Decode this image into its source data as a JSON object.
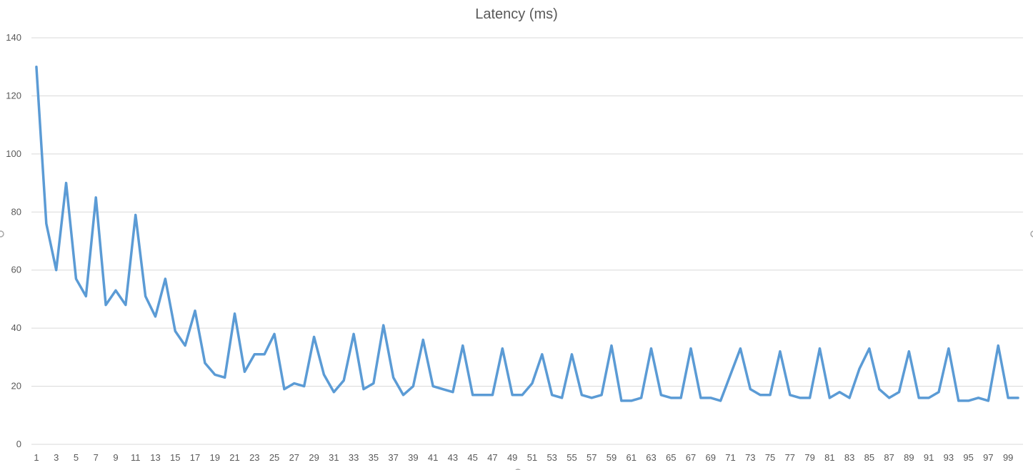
{
  "chart_data": {
    "type": "line",
    "title": "Latency (ms)",
    "xlabel": "",
    "ylabel": "",
    "ylim": [
      0,
      140
    ],
    "y_ticks": [
      0,
      20,
      40,
      60,
      80,
      100,
      120,
      140
    ],
    "x_tick_step": 2,
    "grid": true,
    "legend": "none",
    "series_color": "#5b9bd5",
    "x": [
      1,
      2,
      3,
      4,
      5,
      6,
      7,
      8,
      9,
      10,
      11,
      12,
      13,
      14,
      15,
      16,
      17,
      18,
      19,
      20,
      21,
      22,
      23,
      24,
      25,
      26,
      27,
      28,
      29,
      30,
      31,
      32,
      33,
      34,
      35,
      36,
      37,
      38,
      39,
      40,
      41,
      42,
      43,
      44,
      45,
      46,
      47,
      48,
      49,
      50,
      51,
      52,
      53,
      54,
      55,
      56,
      57,
      58,
      59,
      60,
      61,
      62,
      63,
      64,
      65,
      66,
      67,
      68,
      69,
      70,
      71,
      72,
      73,
      74,
      75,
      76,
      77,
      78,
      79,
      80,
      81,
      82,
      83,
      84,
      85,
      86,
      87,
      88,
      89,
      90,
      91,
      92,
      93,
      94,
      95,
      96,
      97,
      98,
      99,
      100
    ],
    "series": [
      {
        "values": [
          130,
          76,
          60,
          90,
          57,
          51,
          85,
          48,
          53,
          48,
          79,
          51,
          44,
          57,
          39,
          34,
          46,
          28,
          24,
          23,
          45,
          25,
          31,
          31,
          38,
          19,
          21,
          20,
          37,
          24,
          18,
          22,
          38,
          19,
          21,
          41,
          23,
          17,
          20,
          36,
          20,
          19,
          18,
          34,
          17,
          17,
          17,
          33,
          17,
          17,
          21,
          31,
          17,
          16,
          31,
          17,
          16,
          17,
          34,
          15,
          15,
          16,
          33,
          17,
          16,
          16,
          33,
          16,
          16,
          15,
          24,
          33,
          19,
          17,
          17,
          32,
          17,
          16,
          16,
          33,
          16,
          18,
          16,
          26,
          33,
          19,
          16,
          18,
          32,
          16,
          16,
          18,
          33,
          15,
          15,
          16,
          15,
          34,
          16,
          16
        ]
      }
    ]
  }
}
